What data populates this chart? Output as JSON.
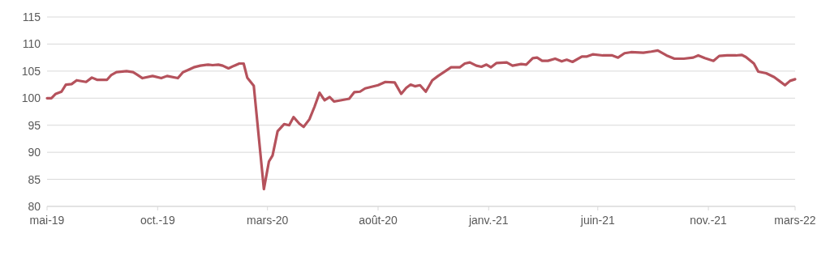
{
  "chart_data": {
    "type": "line",
    "grid": "y",
    "line_style": "solid",
    "marker": "none",
    "xlim": [
      "2019-05-01",
      "2022-03-01"
    ],
    "xticks": [
      {
        "value": "2019-05-01",
        "label": "mai-19"
      },
      {
        "value": "2019-10-01",
        "label": "oct.-19"
      },
      {
        "value": "2020-03-01",
        "label": "mars-20"
      },
      {
        "value": "2020-08-01",
        "label": "août-20"
      },
      {
        "value": "2021-01-01",
        "label": "janv.-21"
      },
      {
        "value": "2021-06-01",
        "label": "juin-21"
      },
      {
        "value": "2021-11-01",
        "label": "nov.-21"
      },
      {
        "value": "2022-03-01",
        "label": "mars-22"
      }
    ],
    "ylim": [
      80,
      115
    ],
    "yticks": [
      80,
      85,
      90,
      95,
      100,
      105,
      110,
      115
    ],
    "x": [
      "2019-05-01",
      "2019-05-07",
      "2019-05-13",
      "2019-05-21",
      "2019-05-27",
      "2019-06-04",
      "2019-06-11",
      "2019-06-24",
      "2019-07-02",
      "2019-07-09",
      "2019-07-23",
      "2019-07-29",
      "2019-08-05",
      "2019-08-19",
      "2019-08-28",
      "2019-09-02",
      "2019-09-10",
      "2019-09-24",
      "2019-10-06",
      "2019-10-14",
      "2019-10-29",
      "2019-11-05",
      "2019-11-12",
      "2019-11-20",
      "2019-11-29",
      "2019-12-10",
      "2019-12-16",
      "2019-12-24",
      "2019-12-30",
      "2020-01-07",
      "2020-01-15",
      "2020-01-22",
      "2020-01-28",
      "2020-02-02",
      "2020-02-11",
      "2020-02-25",
      "2020-03-03",
      "2020-03-08",
      "2020-03-15",
      "2020-03-24",
      "2020-03-31",
      "2020-04-06",
      "2020-04-14",
      "2020-04-20",
      "2020-04-28",
      "2020-05-05",
      "2020-05-12",
      "2020-05-19",
      "2020-05-26",
      "2020-06-01",
      "2020-06-10",
      "2020-06-22",
      "2020-06-29",
      "2020-07-07",
      "2020-07-14",
      "2020-07-23",
      "2020-08-01",
      "2020-08-11",
      "2020-08-24",
      "2020-09-02",
      "2020-09-09",
      "2020-09-15",
      "2020-09-21",
      "2020-09-28",
      "2020-10-06",
      "2020-10-15",
      "2020-10-23",
      "2020-10-31",
      "2020-11-10",
      "2020-11-22",
      "2020-11-29",
      "2020-12-06",
      "2020-12-15",
      "2020-12-22",
      "2020-12-29",
      "2021-01-04",
      "2021-01-12",
      "2021-01-26",
      "2021-02-03",
      "2021-02-15",
      "2021-02-22",
      "2021-03-03",
      "2021-03-09",
      "2021-03-16",
      "2021-03-24",
      "2021-04-03",
      "2021-04-12",
      "2021-04-19",
      "2021-04-27",
      "2021-05-10",
      "2021-05-17",
      "2021-05-25",
      "2021-06-08",
      "2021-06-21",
      "2021-06-29",
      "2021-07-08",
      "2021-07-17",
      "2021-08-03",
      "2021-08-14",
      "2021-08-23",
      "2021-09-04",
      "2021-09-15",
      "2021-09-28",
      "2021-10-11",
      "2021-10-18",
      "2021-10-27",
      "2021-11-08",
      "2021-11-16",
      "2021-11-27",
      "2021-12-09",
      "2021-12-17",
      "2021-12-23",
      "2022-01-03",
      "2022-01-09",
      "2022-01-20",
      "2022-01-31",
      "2022-02-07",
      "2022-02-15",
      "2022-02-22",
      "2022-03-01"
    ],
    "series": [
      {
        "color": "#b5525c",
        "values": [
          100,
          100,
          100.8,
          101.2,
          102.5,
          102.6,
          103.3,
          103.0,
          103.8,
          103.4,
          103.4,
          104.3,
          104.8,
          105.0,
          104.8,
          104.4,
          103.7,
          104.1,
          103.7,
          104.1,
          103.7,
          104.8,
          105.2,
          105.7,
          106.0,
          106.2,
          106.1,
          106.2,
          106.0,
          105.5,
          106.0,
          106.4,
          106.4,
          103.8,
          102.3,
          83.2,
          88.3,
          89.4,
          93.9,
          95.2,
          95.0,
          96.5,
          95.3,
          94.7,
          96.1,
          98.4,
          101.0,
          99.6,
          100.2,
          99.4,
          99.6,
          99.9,
          101.1,
          101.2,
          101.8,
          102.1,
          102.4,
          103.0,
          102.9,
          100.8,
          101.9,
          102.5,
          102.2,
          102.4,
          101.2,
          103.3,
          104.1,
          104.8,
          105.7,
          105.7,
          106.4,
          106.6,
          106.0,
          105.8,
          106.2,
          105.7,
          106.5,
          106.6,
          106.0,
          106.3,
          106.2,
          107.4,
          107.5,
          106.9,
          106.9,
          107.3,
          106.8,
          107.1,
          106.7,
          107.7,
          107.7,
          108.1,
          107.9,
          107.9,
          107.5,
          108.3,
          108.5,
          108.4,
          108.6,
          108.8,
          107.9,
          107.3,
          107.3,
          107.5,
          107.9,
          107.4,
          106.9,
          107.8,
          107.9,
          107.9,
          108.0,
          107.6,
          106.4,
          104.9,
          104.6,
          103.9,
          103.2,
          102.4,
          103.2,
          103.5
        ]
      }
    ]
  }
}
